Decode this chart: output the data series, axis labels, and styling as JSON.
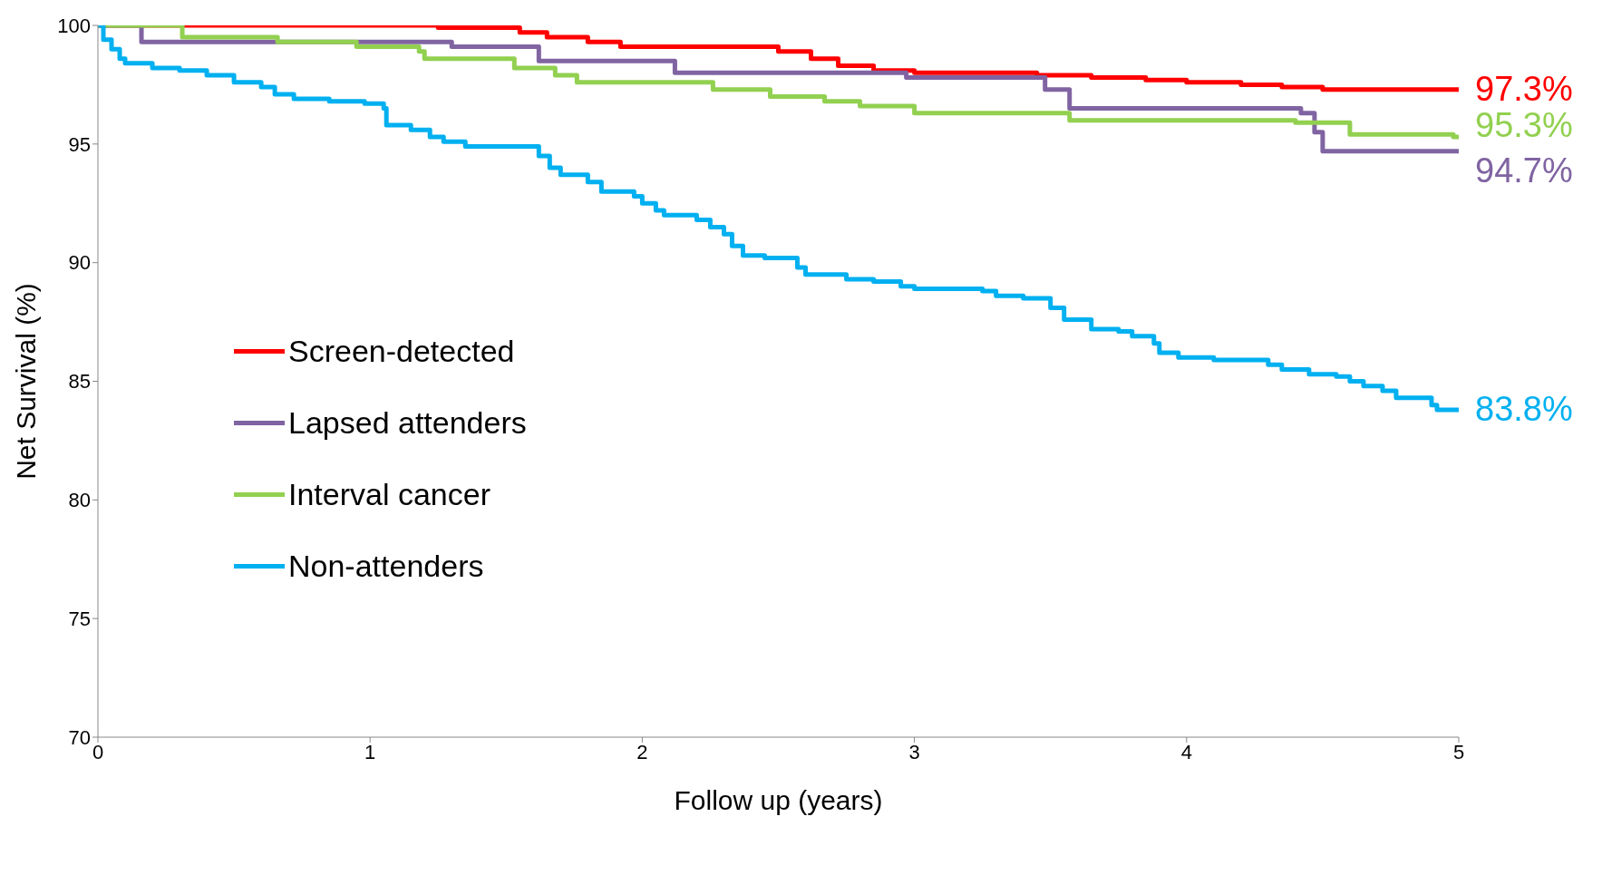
{
  "chart_data": {
    "type": "step",
    "xlabel": "Follow up (years)",
    "ylabel": "Net Survival (%)",
    "xlim": [
      0,
      5
    ],
    "xticks": [
      0,
      1,
      2,
      3,
      4,
      5
    ],
    "ylim": [
      70,
      100
    ],
    "yticks": [
      70,
      75,
      80,
      85,
      90,
      95,
      100
    ],
    "grid": false,
    "legend": "left",
    "marker": "none",
    "line_style": "solid",
    "series": [
      {
        "name": "Screen-detected",
        "color": "#ff0000",
        "x": [
          0,
          1.25,
          1.3,
          1.55,
          1.65,
          1.8,
          1.92,
          2.5,
          2.62,
          2.72,
          2.85,
          3.0,
          3.45,
          3.65,
          3.85,
          4.0,
          4.2,
          4.35,
          4.5,
          5
        ],
        "values": [
          100,
          99.9,
          99.9,
          99.7,
          99.5,
          99.3,
          99.1,
          98.9,
          98.6,
          98.3,
          98.1,
          98.0,
          97.9,
          97.8,
          97.7,
          97.6,
          97.5,
          97.4,
          97.3,
          97.3
        ],
        "value_labels": [
          null,
          null,
          null,
          null,
          null,
          null,
          null,
          null,
          null,
          null,
          null,
          null,
          null,
          null,
          null,
          null,
          null,
          null,
          null,
          "97.3%"
        ]
      },
      {
        "name": "Lapsed attenders",
        "color": "#8064a2",
        "x": [
          0,
          0.16,
          1.3,
          1.62,
          2.12,
          2.97,
          3.48,
          3.57,
          4.42,
          4.47,
          4.5,
          5
        ],
        "values": [
          100,
          99.3,
          99.1,
          98.5,
          98.0,
          97.8,
          97.3,
          96.5,
          96.3,
          95.5,
          94.7,
          94.7
        ],
        "value_labels": [
          null,
          null,
          null,
          null,
          null,
          null,
          null,
          null,
          null,
          null,
          null,
          "94.7%"
        ]
      },
      {
        "name": "Interval cancer",
        "color": "#92d050",
        "x": [
          0,
          0.31,
          0.66,
          0.95,
          1.18,
          1.2,
          1.53,
          1.68,
          1.76,
          2.26,
          2.47,
          2.67,
          2.8,
          3.0,
          3.57,
          4.4,
          4.6,
          4.98,
          5
        ],
        "values": [
          100,
          99.5,
          99.3,
          99.1,
          98.9,
          98.6,
          98.2,
          97.9,
          97.6,
          97.3,
          97.0,
          96.8,
          96.6,
          96.3,
          96.0,
          95.9,
          95.4,
          95.3,
          95.3
        ],
        "value_labels": [
          null,
          null,
          null,
          null,
          null,
          null,
          null,
          null,
          null,
          null,
          null,
          null,
          null,
          null,
          null,
          null,
          null,
          null,
          "95.3%"
        ]
      },
      {
        "name": "Non-attenders",
        "color": "#00b0f0",
        "x": [
          0,
          0.02,
          0.05,
          0.08,
          0.1,
          0.2,
          0.3,
          0.4,
          0.5,
          0.6,
          0.65,
          0.72,
          0.85,
          0.98,
          1.05,
          1.06,
          1.15,
          1.22,
          1.27,
          1.35,
          1.62,
          1.66,
          1.7,
          1.8,
          1.85,
          1.97,
          2.0,
          2.05,
          2.08,
          2.2,
          2.25,
          2.3,
          2.33,
          2.37,
          2.45,
          2.57,
          2.6,
          2.75,
          2.85,
          2.95,
          3.0,
          3.25,
          3.3,
          3.4,
          3.5,
          3.55,
          3.65,
          3.75,
          3.8,
          3.88,
          3.9,
          3.97,
          4.1,
          4.3,
          4.35,
          4.45,
          4.55,
          4.6,
          4.65,
          4.72,
          4.77,
          4.9,
          4.92,
          5
        ],
        "values": [
          100,
          99.4,
          99.0,
          98.6,
          98.4,
          98.2,
          98.1,
          97.9,
          97.6,
          97.4,
          97.1,
          96.9,
          96.8,
          96.7,
          96.5,
          95.8,
          95.6,
          95.3,
          95.1,
          94.9,
          94.5,
          94.0,
          93.7,
          93.4,
          93.0,
          92.8,
          92.5,
          92.2,
          92.0,
          91.8,
          91.5,
          91.2,
          90.7,
          90.3,
          90.2,
          89.8,
          89.5,
          89.3,
          89.2,
          89.0,
          88.9,
          88.8,
          88.6,
          88.5,
          88.1,
          87.6,
          87.2,
          87.1,
          86.9,
          86.6,
          86.2,
          86.0,
          85.9,
          85.7,
          85.5,
          85.3,
          85.2,
          85.0,
          84.8,
          84.6,
          84.3,
          84.0,
          83.8,
          83.8
        ],
        "value_labels": [
          null,
          null,
          null,
          null,
          null,
          null,
          null,
          null,
          null,
          null,
          null,
          null,
          null,
          null,
          null,
          null,
          null,
          null,
          null,
          null,
          null,
          null,
          null,
          null,
          null,
          null,
          null,
          null,
          null,
          null,
          null,
          null,
          null,
          null,
          null,
          null,
          null,
          null,
          null,
          null,
          null,
          null,
          null,
          null,
          null,
          null,
          null,
          null,
          null,
          null,
          null,
          null,
          null,
          null,
          null,
          null,
          null,
          null,
          null,
          null,
          null,
          null,
          null,
          "83.8%"
        ]
      }
    ]
  }
}
